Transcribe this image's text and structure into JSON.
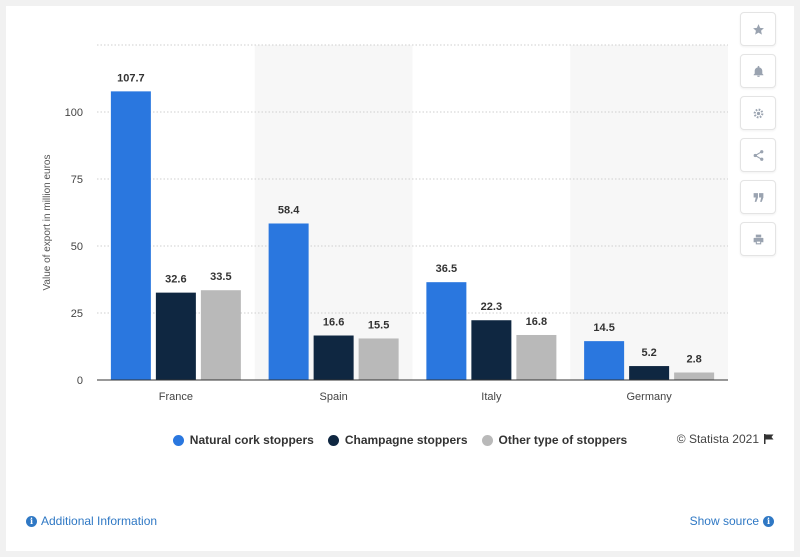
{
  "chart_data": {
    "type": "bar",
    "categories": [
      "France",
      "Spain",
      "Italy",
      "Germany"
    ],
    "series": [
      {
        "name": "Natural cork stoppers",
        "color": "#2a77df",
        "values": [
          107.7,
          58.4,
          36.5,
          14.5
        ]
      },
      {
        "name": "Champagne stoppers",
        "color": "#0f2741",
        "values": [
          32.6,
          16.6,
          22.3,
          5.2
        ]
      },
      {
        "name": "Other type of stoppers",
        "color": "#b9b9b9",
        "values": [
          33.5,
          15.5,
          16.8,
          2.8
        ]
      }
    ],
    "ylabel": "Value of export in million euros",
    "ylim": [
      0,
      125
    ],
    "yticks": [
      0,
      25,
      50,
      75,
      100
    ],
    "grid": true,
    "legend_position": "bottom"
  },
  "ui": {
    "credit": "© Statista 2021",
    "additional_info": "Additional Information",
    "show_source": "Show source",
    "tools": [
      "star-icon",
      "bell-icon",
      "gear-icon",
      "share-icon",
      "quote-icon",
      "print-icon"
    ]
  }
}
